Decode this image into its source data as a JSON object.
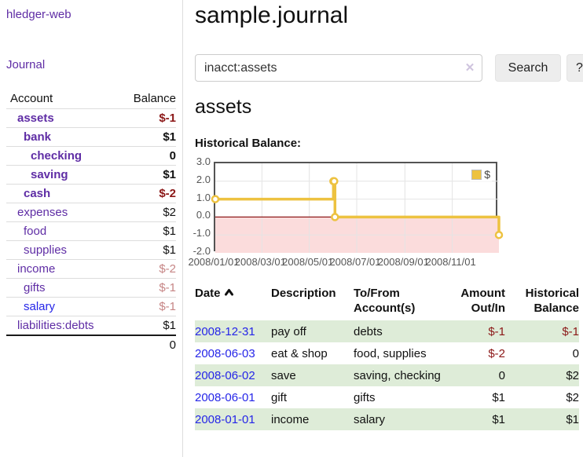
{
  "colors": {
    "link_purple": "#5f2da5",
    "link_blue": "#2525e8",
    "neg_strong": "#8b1717",
    "neg_soft": "#c68585",
    "row_green": "#deecd8"
  },
  "brand": "hledger-web",
  "nav": {
    "journal": "Journal"
  },
  "accounts_table": {
    "headers": {
      "account": "Account",
      "balance": "Balance"
    },
    "rows": [
      {
        "name": "assets",
        "balance": "$-1"
      },
      {
        "name": "bank",
        "balance": "$1"
      },
      {
        "name": "checking",
        "balance": "0"
      },
      {
        "name": "saving",
        "balance": "$1"
      },
      {
        "name": "cash",
        "balance": "$-2"
      },
      {
        "name": "expenses",
        "balance": "$2"
      },
      {
        "name": "food",
        "balance": "$1"
      },
      {
        "name": "supplies",
        "balance": "$1"
      },
      {
        "name": "income",
        "balance": "$-2"
      },
      {
        "name": "gifts",
        "balance": "$-1"
      },
      {
        "name": "salary",
        "balance": "$-1"
      },
      {
        "name": "liabilities:debts",
        "balance": "$1"
      }
    ],
    "total": "0"
  },
  "header": {
    "title": "sample.journal"
  },
  "search": {
    "value": "inacct:assets",
    "clear_label": "✕",
    "button_label": "Search",
    "help_label": "?"
  },
  "account_page": {
    "heading": "assets",
    "chart_title": "Historical Balance:"
  },
  "chart_data": {
    "type": "line",
    "step": true,
    "title": "Historical Balance",
    "xrange": [
      "2008-01-01",
      "2008-12-31"
    ],
    "ylim": [
      -2,
      3
    ],
    "yticks": [
      3,
      2,
      1,
      0,
      -1,
      -2
    ],
    "xticks": [
      {
        "date": "2008-01-01",
        "label": "2008/01/01"
      },
      {
        "date": "2008-03-01",
        "label": "2008/03/01"
      },
      {
        "date": "2008-05-01",
        "label": "2008/05/01"
      },
      {
        "date": "2008-07-01",
        "label": "2008/07/01"
      },
      {
        "date": "2008-09-01",
        "label": "2008/09/01"
      },
      {
        "date": "2008-11-01",
        "label": "2008/11/01"
      }
    ],
    "series": [
      {
        "name": "$",
        "color": "#edc240",
        "points": [
          {
            "date": "2008-01-01",
            "value": 1
          },
          {
            "date": "2008-06-01",
            "value": 2
          },
          {
            "date": "2008-06-02",
            "value": 2
          },
          {
            "date": "2008-06-03",
            "value": 0
          },
          {
            "date": "2008-12-31",
            "value": -1
          }
        ]
      }
    ],
    "grid": true,
    "negative_fill": "#fbdcdc",
    "zero_line_color": "#8f1a1a",
    "legend": {
      "position": "top-right",
      "label": "$",
      "swatch_color": "#edc240"
    }
  },
  "register": {
    "headers": {
      "date": "Date",
      "description": "Description",
      "accounts": "To/From Account(s)",
      "amount": "Amount Out/In",
      "balance": "Historical Balance"
    },
    "rows": [
      {
        "date": "2008-12-31",
        "description": "pay off",
        "accounts": "debts",
        "amount": "$-1",
        "balance": "$-1"
      },
      {
        "date": "2008-06-03",
        "description": "eat & shop",
        "accounts": "food, supplies",
        "amount": "$-2",
        "balance": "0"
      },
      {
        "date": "2008-06-02",
        "description": "save",
        "accounts": "saving, checking",
        "amount": "0",
        "balance": "$2"
      },
      {
        "date": "2008-06-01",
        "description": "gift",
        "accounts": "gifts",
        "amount": "$1",
        "balance": "$2"
      },
      {
        "date": "2008-01-01",
        "description": "income",
        "accounts": "salary",
        "amount": "$1",
        "balance": "$1"
      }
    ]
  }
}
